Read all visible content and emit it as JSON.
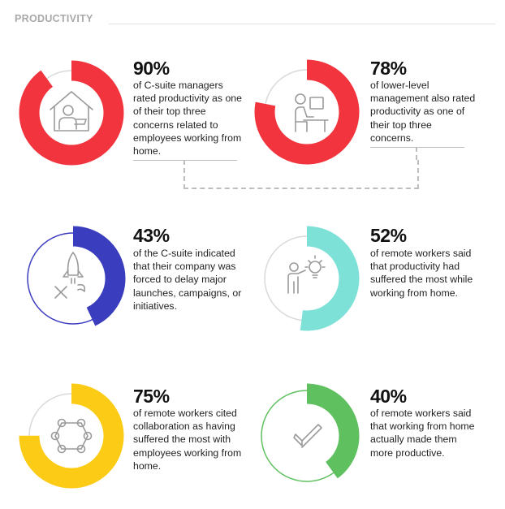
{
  "header": {
    "title": "PRODUCTIVITY"
  },
  "chart_data": {
    "type": "pie",
    "items": [
      {
        "value": 90,
        "label": "90%",
        "description": "of C-suite managers rated productivity as one of their top three concerns related to employees working from home.",
        "color": "#f1343d",
        "icon": "house-worker-icon"
      },
      {
        "value": 78,
        "label": "78%",
        "description": "of lower-level management also rated productivity as one of their top three concerns.",
        "color": "#f1343d",
        "icon": "desk-worker-icon"
      },
      {
        "value": 43,
        "label": "43%",
        "description": "of the C-suite indicated that their company was forced to delay major launches, campaigns, or initiatives.",
        "color": "#3b3dbf",
        "icon": "rocket-cancel-icon"
      },
      {
        "value": 52,
        "label": "52%",
        "description": "of remote workers said that productivity had suffered the most while working from home.",
        "color": "#7de1d8",
        "icon": "idea-person-icon"
      },
      {
        "value": 75,
        "label": "75%",
        "description": "of remote workers cited collaboration as having suffered the most with employees working from home.",
        "color": "#fbcb16",
        "icon": "team-network-icon"
      },
      {
        "value": 40,
        "label": "40%",
        "description": "of remote workers said that working from home actually made them more productive.",
        "color": "#5fc05f",
        "icon": "checkmark-icon"
      }
    ]
  }
}
